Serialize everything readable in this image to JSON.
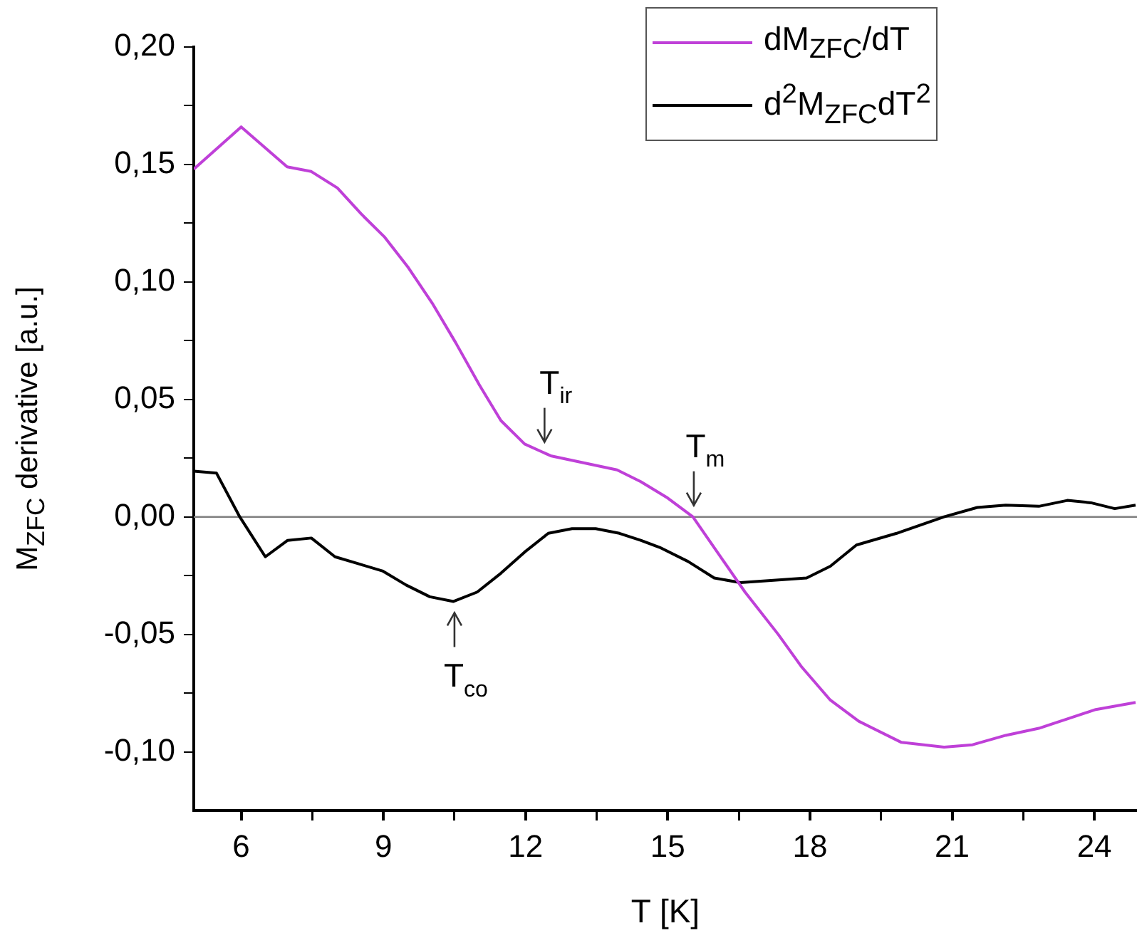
{
  "chart_data": {
    "type": "line",
    "xlabel": "T [K]",
    "ylabel": "M$_{ZFC}$ derivative [a.u.]",
    "xlim": [
      5,
      24.9
    ],
    "xticks": [
      6,
      {
        "value": 7.5,
        "label": null
      },
      9,
      {
        "value": 10.5,
        "label": null
      },
      12,
      {
        "value": 13.5,
        "label": null
      },
      15,
      {
        "value": 16.5,
        "label": null
      },
      18,
      {
        "value": 19.5,
        "label": null
      },
      21,
      {
        "value": 22.5,
        "label": null
      },
      24
    ],
    "ylim": [
      -0.125,
      0.2
    ],
    "yticks": [
      {
        "value": -0.1,
        "label": "-0,10"
      },
      {
        "value": -0.075,
        "label": null
      },
      {
        "value": -0.05,
        "label": "-0,05"
      },
      {
        "value": -0.025,
        "label": null
      },
      {
        "value": 0,
        "label": "0,00"
      },
      {
        "value": 0.025,
        "label": null
      },
      {
        "value": 0.05,
        "label": "0,05"
      },
      {
        "value": 0.075,
        "label": null
      },
      {
        "value": 0.1,
        "label": "0,10"
      },
      {
        "value": 0.125,
        "label": null
      },
      {
        "value": 0.15,
        "label": "0,15"
      },
      {
        "value": 0.175,
        "label": null
      },
      {
        "value": 0.2,
        "label": "0,20"
      }
    ],
    "grid": false,
    "legend": "top right",
    "series": [
      {
        "name": "dM$_{ZFC}$/dT",
        "color": "#bf40d8",
        "x": [
          5,
          6,
          6.97,
          7.48,
          8.03,
          8.53,
          9.03,
          9.53,
          10.03,
          10.53,
          11.03,
          11.48,
          11.98,
          12.53,
          13.93,
          14.43,
          15.0,
          15.53,
          16.63,
          17.33,
          17.83,
          18.43,
          19.03,
          19.93,
          20.83,
          21.43,
          22.13,
          22.83,
          23.43,
          24.03,
          24.87
        ],
        "values": [
          0.148,
          0.166,
          0.149,
          0.147,
          0.14,
          0.129,
          0.119,
          0.106,
          0.091,
          0.074,
          0.056,
          0.041,
          0.031,
          0.026,
          0.02,
          0.015,
          0.008,
          0.0,
          -0.032,
          -0.05,
          -0.064,
          -0.078,
          -0.087,
          -0.096,
          -0.098,
          -0.097,
          -0.093,
          -0.09,
          -0.086,
          -0.082,
          -0.079
        ]
      },
      {
        "name": "d$^{2}$M$_{ZFC}$dT$^{2}$",
        "color": "#000000",
        "x": [
          5,
          5.48,
          5.97,
          6.51,
          6.98,
          7.48,
          7.98,
          8.48,
          8.98,
          9.48,
          9.98,
          10.48,
          10.98,
          11.48,
          11.98,
          12.48,
          12.98,
          13.48,
          13.98,
          14.43,
          14.83,
          15.43,
          15.98,
          16.53,
          17.93,
          18.43,
          18.98,
          19.83,
          20.83,
          21.53,
          22.13,
          22.83,
          23.43,
          23.93,
          24.43,
          24.87
        ],
        "values": [
          0.0195,
          0.0186,
          0.0,
          -0.017,
          -0.01,
          -0.009,
          -0.017,
          -0.02,
          -0.023,
          -0.029,
          -0.034,
          -0.036,
          -0.032,
          -0.024,
          -0.015,
          -0.007,
          -0.005,
          -0.005,
          -0.007,
          -0.01,
          -0.013,
          -0.019,
          -0.026,
          -0.028,
          -0.026,
          -0.021,
          -0.012,
          -0.007,
          0.0,
          0.004,
          0.005,
          0.0045,
          0.007,
          0.006,
          0.0035,
          0.005
        ]
      }
    ],
    "ref_lines": [
      {
        "axis": "y",
        "value": 0,
        "color": "#808080"
      }
    ],
    "annotations": [
      {
        "text": "T$_{ir}$",
        "x": 12.4,
        "y": 0.027
      },
      {
        "text": "T$_{m}$",
        "x": 15.55,
        "y": 0.0
      },
      {
        "text": "T$_{co}$",
        "x": 10.5,
        "y": -0.036
      }
    ]
  }
}
